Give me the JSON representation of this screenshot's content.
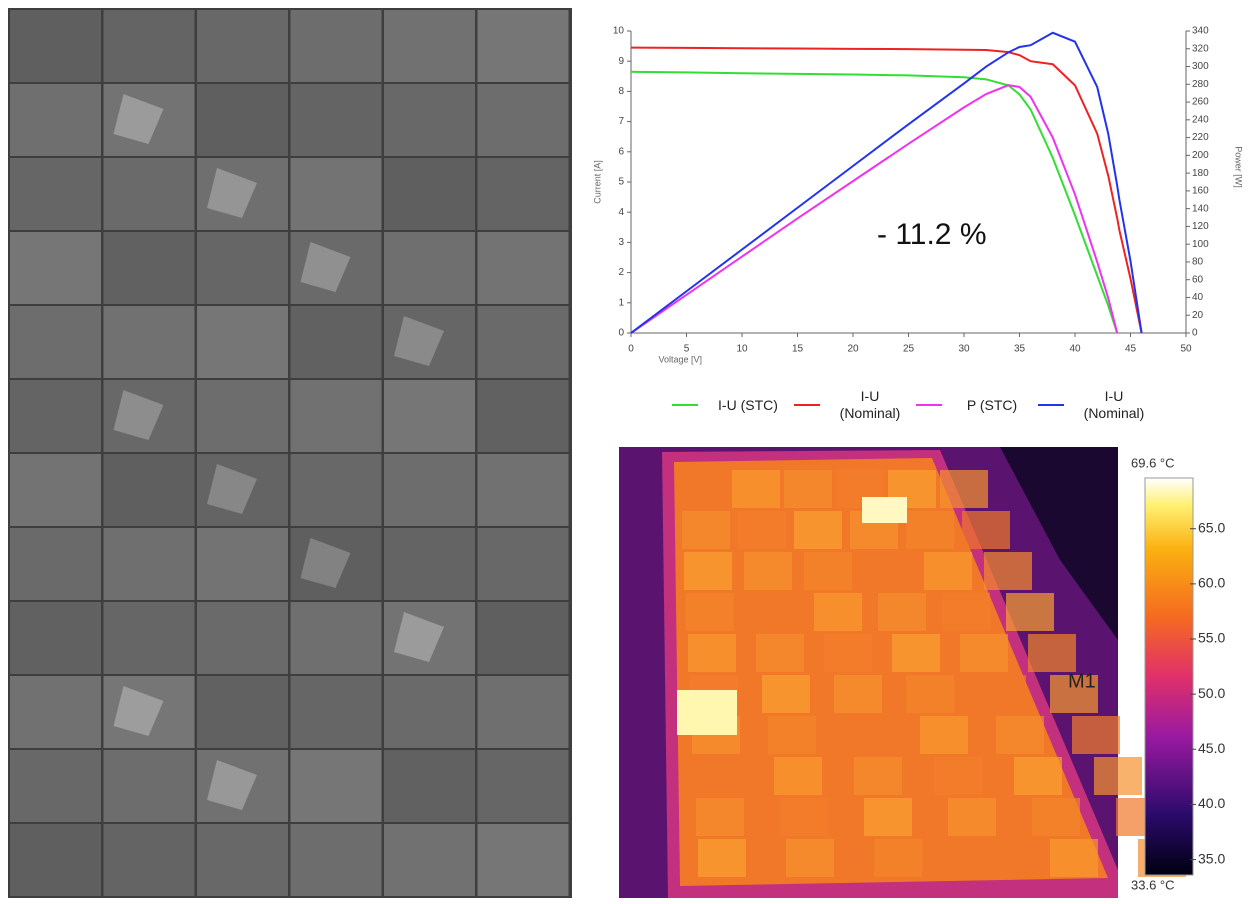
{
  "chart_data": [
    {
      "type": "line",
      "xlabel": "Voltage [V]",
      "ylabel": "Current [A]",
      "y2label": "Power [W]",
      "annotation": "- 11.2 %",
      "x": [
        0,
        5,
        10,
        15,
        20,
        25,
        30,
        32,
        34,
        35,
        36,
        38,
        40,
        42,
        43,
        43.8,
        44,
        45,
        46
      ],
      "series": [
        {
          "name": "I-U (STC)",
          "color": "#33dd33",
          "values": [
            8.65,
            8.63,
            8.6,
            8.58,
            8.56,
            8.53,
            8.47,
            8.4,
            8.2,
            7.9,
            7.4,
            5.8,
            3.9,
            1.9,
            0.9,
            0,
            null,
            null,
            null
          ]
        },
        {
          "name": "I-U (Nominal)",
          "color": "#ee2222",
          "values": [
            9.45,
            9.44,
            9.43,
            9.42,
            9.41,
            9.4,
            9.38,
            9.37,
            9.3,
            9.2,
            9.0,
            8.9,
            8.2,
            6.6,
            5.2,
            3.8,
            3.4,
            1.8,
            0
          ]
        },
        {
          "name": "P (STC)",
          "color": "#ee33ee",
          "axis": "y2",
          "values": [
            0,
            43,
            86,
            129,
            171,
            213,
            254,
            269,
            279,
            277,
            266,
            220,
            156,
            80,
            39,
            0,
            null,
            null,
            null
          ]
        },
        {
          "name": "I-U (Nominal)",
          "color": "#2233ee",
          "axis": "y2",
          "values": [
            0,
            47,
            94,
            141,
            188,
            235,
            281,
            300,
            316,
            322,
            324,
            338,
            328,
            277,
            224,
            166,
            150,
            81,
            0
          ]
        }
      ],
      "xlim": [
        0,
        50
      ],
      "xticks": [
        0,
        5,
        10,
        15,
        20,
        25,
        30,
        35,
        40,
        45,
        50
      ],
      "ylim": [
        0,
        10
      ],
      "yticks": [
        0,
        1,
        2,
        3,
        4,
        5,
        6,
        7,
        8,
        9,
        10
      ],
      "y2lim": [
        0,
        340
      ],
      "y2ticks": [
        0,
        20,
        40,
        60,
        80,
        100,
        120,
        140,
        160,
        180,
        200,
        220,
        240,
        260,
        280,
        300,
        320,
        340
      ]
    },
    {
      "type": "colorbar",
      "max_label": "69.6 °C",
      "min_label": "33.6 °C",
      "annotation": "M1",
      "ylim": [
        33.6,
        69.6
      ],
      "yticks": [
        {
          "value": 35,
          "label": "35.0"
        },
        {
          "value": 40,
          "label": "40.0"
        },
        {
          "value": 45,
          "label": "45.0"
        },
        {
          "value": 50,
          "label": "50.0"
        },
        {
          "value": 55,
          "label": "55.0"
        },
        {
          "value": 60,
          "label": "60.0"
        },
        {
          "value": 65,
          "label": "65.0"
        }
      ]
    }
  ]
}
